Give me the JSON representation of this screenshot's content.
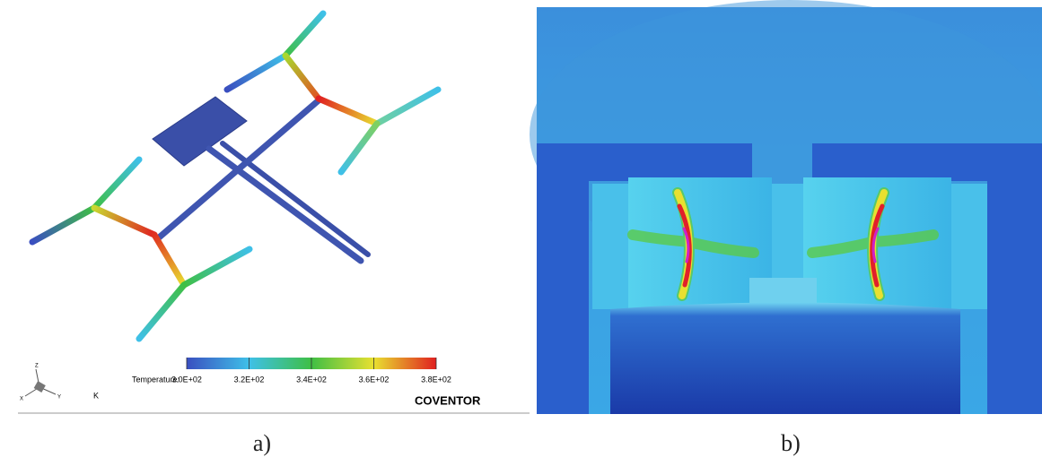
{
  "panel_a": {
    "colorbar": {
      "label": "Temperature:",
      "unit": "K",
      "ticks": [
        {
          "value": 300,
          "label": "3.0E+02"
        },
        {
          "value": 320,
          "label": "3.2E+02"
        },
        {
          "value": 340,
          "label": "3.4E+02"
        },
        {
          "value": 360,
          "label": "3.6E+02"
        },
        {
          "value": 380,
          "label": "3.8E+02"
        }
      ]
    },
    "brand": "COVENTOR",
    "triad": [
      "Z",
      "X",
      "Y"
    ],
    "caption": "a)"
  },
  "panel_b": {
    "caption": "b)"
  }
}
